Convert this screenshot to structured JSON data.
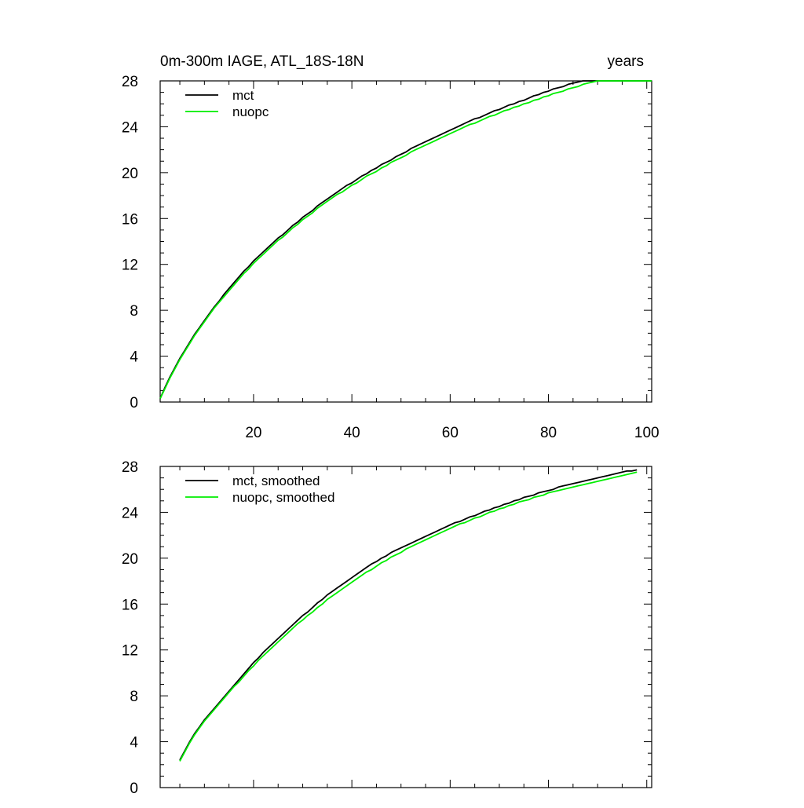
{
  "chart_data": [
    {
      "type": "line",
      "title": "0m-300m IAGE, ATL_18S-18N",
      "units": "years",
      "xlim": [
        1,
        101
      ],
      "ylim": [
        0,
        28
      ],
      "x_ticks": [
        20,
        40,
        60,
        80,
        100
      ],
      "y_ticks": [
        0,
        4,
        8,
        12,
        16,
        20,
        24,
        28
      ],
      "x_tick_labels": [
        "20",
        "40",
        "60",
        "80",
        "100"
      ],
      "y_tick_labels": [
        "0",
        "4",
        "8",
        "12",
        "16",
        "20",
        "24",
        "28"
      ],
      "legend": "top-left",
      "grid": false,
      "series": [
        {
          "name": "mct",
          "color": "#000000",
          "x": [
            1,
            2,
            3,
            4,
            5,
            6,
            7,
            8,
            9,
            10,
            11,
            12,
            13,
            14,
            15,
            16,
            17,
            18,
            19,
            20,
            21,
            22,
            23,
            24,
            25,
            26,
            27,
            28,
            29,
            30,
            31,
            32,
            33,
            34,
            35,
            36,
            37,
            38,
            39,
            40,
            41,
            42,
            43,
            44,
            45,
            46,
            47,
            48,
            49,
            50,
            51,
            52,
            53,
            54,
            55,
            56,
            57,
            58,
            59,
            60,
            61,
            62,
            63,
            64,
            65,
            66,
            67,
            68,
            69,
            70,
            71,
            72,
            73,
            74,
            75,
            76,
            77,
            78,
            79,
            80,
            81,
            82,
            83,
            84,
            85,
            86,
            87,
            88,
            89,
            90,
            91,
            92,
            93,
            94,
            95,
            96,
            97,
            98,
            99,
            100,
            101
          ],
          "values": [
            0.3,
            1.3,
            2.2,
            3.0,
            3.8,
            4.5,
            5.2,
            5.9,
            6.5,
            7.1,
            7.7,
            8.3,
            8.8,
            9.4,
            9.9,
            10.4,
            10.9,
            11.4,
            11.8,
            12.3,
            12.7,
            13.1,
            13.5,
            13.9,
            14.3,
            14.6,
            15.0,
            15.4,
            15.7,
            16.1,
            16.4,
            16.7,
            17.1,
            17.4,
            17.7,
            18.0,
            18.3,
            18.6,
            18.9,
            19.1,
            19.4,
            19.7,
            19.9,
            20.2,
            20.4,
            20.7,
            20.9,
            21.1,
            21.4,
            21.6,
            21.8,
            22.1,
            22.3,
            22.5,
            22.7,
            22.9,
            23.1,
            23.3,
            23.5,
            23.7,
            23.9,
            24.1,
            24.3,
            24.5,
            24.7,
            24.8,
            25.0,
            25.2,
            25.4,
            25.5,
            25.7,
            25.9,
            26.0,
            26.2,
            26.3,
            26.5,
            26.7,
            26.8,
            27.0,
            27.1,
            27.3,
            27.4,
            27.5,
            27.7,
            27.8,
            27.9,
            28.1,
            28.2,
            28.3,
            28.4,
            28.5,
            28.6,
            28.7,
            28.8,
            28.9,
            29.0,
            29.1,
            29.2,
            29.3,
            29.4,
            29.5
          ]
        },
        {
          "name": "nuopc",
          "color": "#00ee00",
          "x": [
            1,
            2,
            3,
            4,
            5,
            6,
            7,
            8,
            9,
            10,
            11,
            12,
            13,
            14,
            15,
            16,
            17,
            18,
            19,
            20,
            21,
            22,
            23,
            24,
            25,
            26,
            27,
            28,
            29,
            30,
            31,
            32,
            33,
            34,
            35,
            36,
            37,
            38,
            39,
            40,
            41,
            42,
            43,
            44,
            45,
            46,
            47,
            48,
            49,
            50,
            51,
            52,
            53,
            54,
            55,
            56,
            57,
            58,
            59,
            60,
            61,
            62,
            63,
            64,
            65,
            66,
            67,
            68,
            69,
            70,
            71,
            72,
            73,
            74,
            75,
            76,
            77,
            78,
            79,
            80,
            81,
            82,
            83,
            84,
            85,
            86,
            87,
            88,
            89,
            90,
            91,
            92,
            93,
            94,
            95,
            96,
            97,
            98,
            99,
            100,
            101
          ],
          "values": [
            0.3,
            1.2,
            2.1,
            2.9,
            3.7,
            4.4,
            5.1,
            5.8,
            6.4,
            7.0,
            7.6,
            8.2,
            8.7,
            9.2,
            9.7,
            10.2,
            10.7,
            11.2,
            11.6,
            12.1,
            12.5,
            12.9,
            13.3,
            13.7,
            14.1,
            14.4,
            14.8,
            15.2,
            15.5,
            15.9,
            16.2,
            16.5,
            16.9,
            17.2,
            17.5,
            17.8,
            18.1,
            18.3,
            18.6,
            18.9,
            19.1,
            19.4,
            19.7,
            19.9,
            20.1,
            20.4,
            20.6,
            20.9,
            21.1,
            21.3,
            21.5,
            21.8,
            22.0,
            22.2,
            22.4,
            22.6,
            22.8,
            23.0,
            23.2,
            23.4,
            23.6,
            23.8,
            24.0,
            24.2,
            24.3,
            24.5,
            24.7,
            24.9,
            25.0,
            25.2,
            25.4,
            25.5,
            25.7,
            25.8,
            26.0,
            26.1,
            26.3,
            26.4,
            26.6,
            26.7,
            26.9,
            27.0,
            27.1,
            27.3,
            27.4,
            27.5,
            27.7,
            27.8,
            27.9,
            28.0,
            28.1,
            28.2,
            28.3,
            28.4,
            28.5,
            28.6,
            28.7,
            28.8,
            28.9,
            29.0,
            29.1
          ]
        }
      ]
    },
    {
      "type": "line",
      "xlim": [
        1,
        101
      ],
      "ylim": [
        0,
        28
      ],
      "x_ticks": [
        20,
        40,
        60,
        80,
        100
      ],
      "y_ticks": [
        0,
        4,
        8,
        12,
        16,
        20,
        24,
        28
      ],
      "y_tick_labels": [
        "0",
        "4",
        "8",
        "12",
        "16",
        "20",
        "24",
        "28"
      ],
      "legend": "top-left",
      "grid": false,
      "series": [
        {
          "name": "mct, smoothed",
          "color": "#000000",
          "x": [
            5,
            6,
            7,
            8,
            9,
            10,
            11,
            12,
            13,
            14,
            15,
            16,
            17,
            18,
            19,
            20,
            21,
            22,
            23,
            24,
            25,
            26,
            27,
            28,
            29,
            30,
            31,
            32,
            33,
            34,
            35,
            36,
            37,
            38,
            39,
            40,
            41,
            42,
            43,
            44,
            45,
            46,
            47,
            48,
            49,
            50,
            51,
            52,
            53,
            54,
            55,
            56,
            57,
            58,
            59,
            60,
            61,
            62,
            63,
            64,
            65,
            66,
            67,
            68,
            69,
            70,
            71,
            72,
            73,
            74,
            75,
            76,
            77,
            78,
            79,
            80,
            81,
            82,
            83,
            84,
            85,
            86,
            87,
            88,
            89,
            90,
            91,
            92,
            93,
            94,
            95,
            96,
            97,
            98
          ],
          "values": [
            2.4,
            3.2,
            4.0,
            4.7,
            5.3,
            5.9,
            6.4,
            6.9,
            7.4,
            7.9,
            8.4,
            8.9,
            9.4,
            9.9,
            10.4,
            10.9,
            11.3,
            11.8,
            12.2,
            12.6,
            13.0,
            13.4,
            13.8,
            14.2,
            14.6,
            15.0,
            15.3,
            15.7,
            16.1,
            16.4,
            16.8,
            17.1,
            17.4,
            17.7,
            18.0,
            18.3,
            18.6,
            18.9,
            19.2,
            19.5,
            19.7,
            20.0,
            20.2,
            20.5,
            20.7,
            20.9,
            21.1,
            21.3,
            21.5,
            21.7,
            21.9,
            22.1,
            22.3,
            22.5,
            22.7,
            22.9,
            23.1,
            23.2,
            23.4,
            23.6,
            23.7,
            23.9,
            24.1,
            24.2,
            24.4,
            24.5,
            24.7,
            24.8,
            25.0,
            25.1,
            25.3,
            25.4,
            25.5,
            25.7,
            25.8,
            25.9,
            26.0,
            26.2,
            26.3,
            26.4,
            26.5,
            26.6,
            26.7,
            26.8,
            26.9,
            27.0,
            27.1,
            27.2,
            27.3,
            27.4,
            27.5,
            27.6,
            27.6,
            27.7
          ]
        },
        {
          "name": "nuopc, smoothed",
          "color": "#00ee00",
          "x": [
            5,
            6,
            7,
            8,
            9,
            10,
            11,
            12,
            13,
            14,
            15,
            16,
            17,
            18,
            19,
            20,
            21,
            22,
            23,
            24,
            25,
            26,
            27,
            28,
            29,
            30,
            31,
            32,
            33,
            34,
            35,
            36,
            37,
            38,
            39,
            40,
            41,
            42,
            43,
            44,
            45,
            46,
            47,
            48,
            49,
            50,
            51,
            52,
            53,
            54,
            55,
            56,
            57,
            58,
            59,
            60,
            61,
            62,
            63,
            64,
            65,
            66,
            67,
            68,
            69,
            70,
            71,
            72,
            73,
            74,
            75,
            76,
            77,
            78,
            79,
            80,
            81,
            82,
            83,
            84,
            85,
            86,
            87,
            88,
            89,
            90,
            91,
            92,
            93,
            94,
            95,
            96,
            97,
            98
          ],
          "values": [
            2.3,
            3.1,
            3.9,
            4.6,
            5.2,
            5.8,
            6.3,
            6.8,
            7.3,
            7.8,
            8.3,
            8.8,
            9.2,
            9.7,
            10.2,
            10.6,
            11.1,
            11.5,
            11.9,
            12.3,
            12.7,
            13.1,
            13.5,
            13.9,
            14.3,
            14.6,
            15.0,
            15.3,
            15.7,
            16.0,
            16.4,
            16.7,
            17.0,
            17.3,
            17.6,
            17.9,
            18.2,
            18.5,
            18.8,
            19.0,
            19.3,
            19.6,
            19.8,
            20.1,
            20.3,
            20.5,
            20.8,
            21.0,
            21.2,
            21.4,
            21.6,
            21.8,
            22.0,
            22.2,
            22.4,
            22.6,
            22.8,
            23.0,
            23.1,
            23.3,
            23.5,
            23.6,
            23.8,
            24.0,
            24.1,
            24.3,
            24.4,
            24.6,
            24.7,
            24.9,
            25.0,
            25.1,
            25.3,
            25.4,
            25.5,
            25.7,
            25.8,
            25.9,
            26.0,
            26.1,
            26.2,
            26.3,
            26.4,
            26.5,
            26.6,
            26.7,
            26.8,
            26.9,
            27.0,
            27.1,
            27.2,
            27.3,
            27.4,
            27.5
          ]
        }
      ]
    }
  ]
}
